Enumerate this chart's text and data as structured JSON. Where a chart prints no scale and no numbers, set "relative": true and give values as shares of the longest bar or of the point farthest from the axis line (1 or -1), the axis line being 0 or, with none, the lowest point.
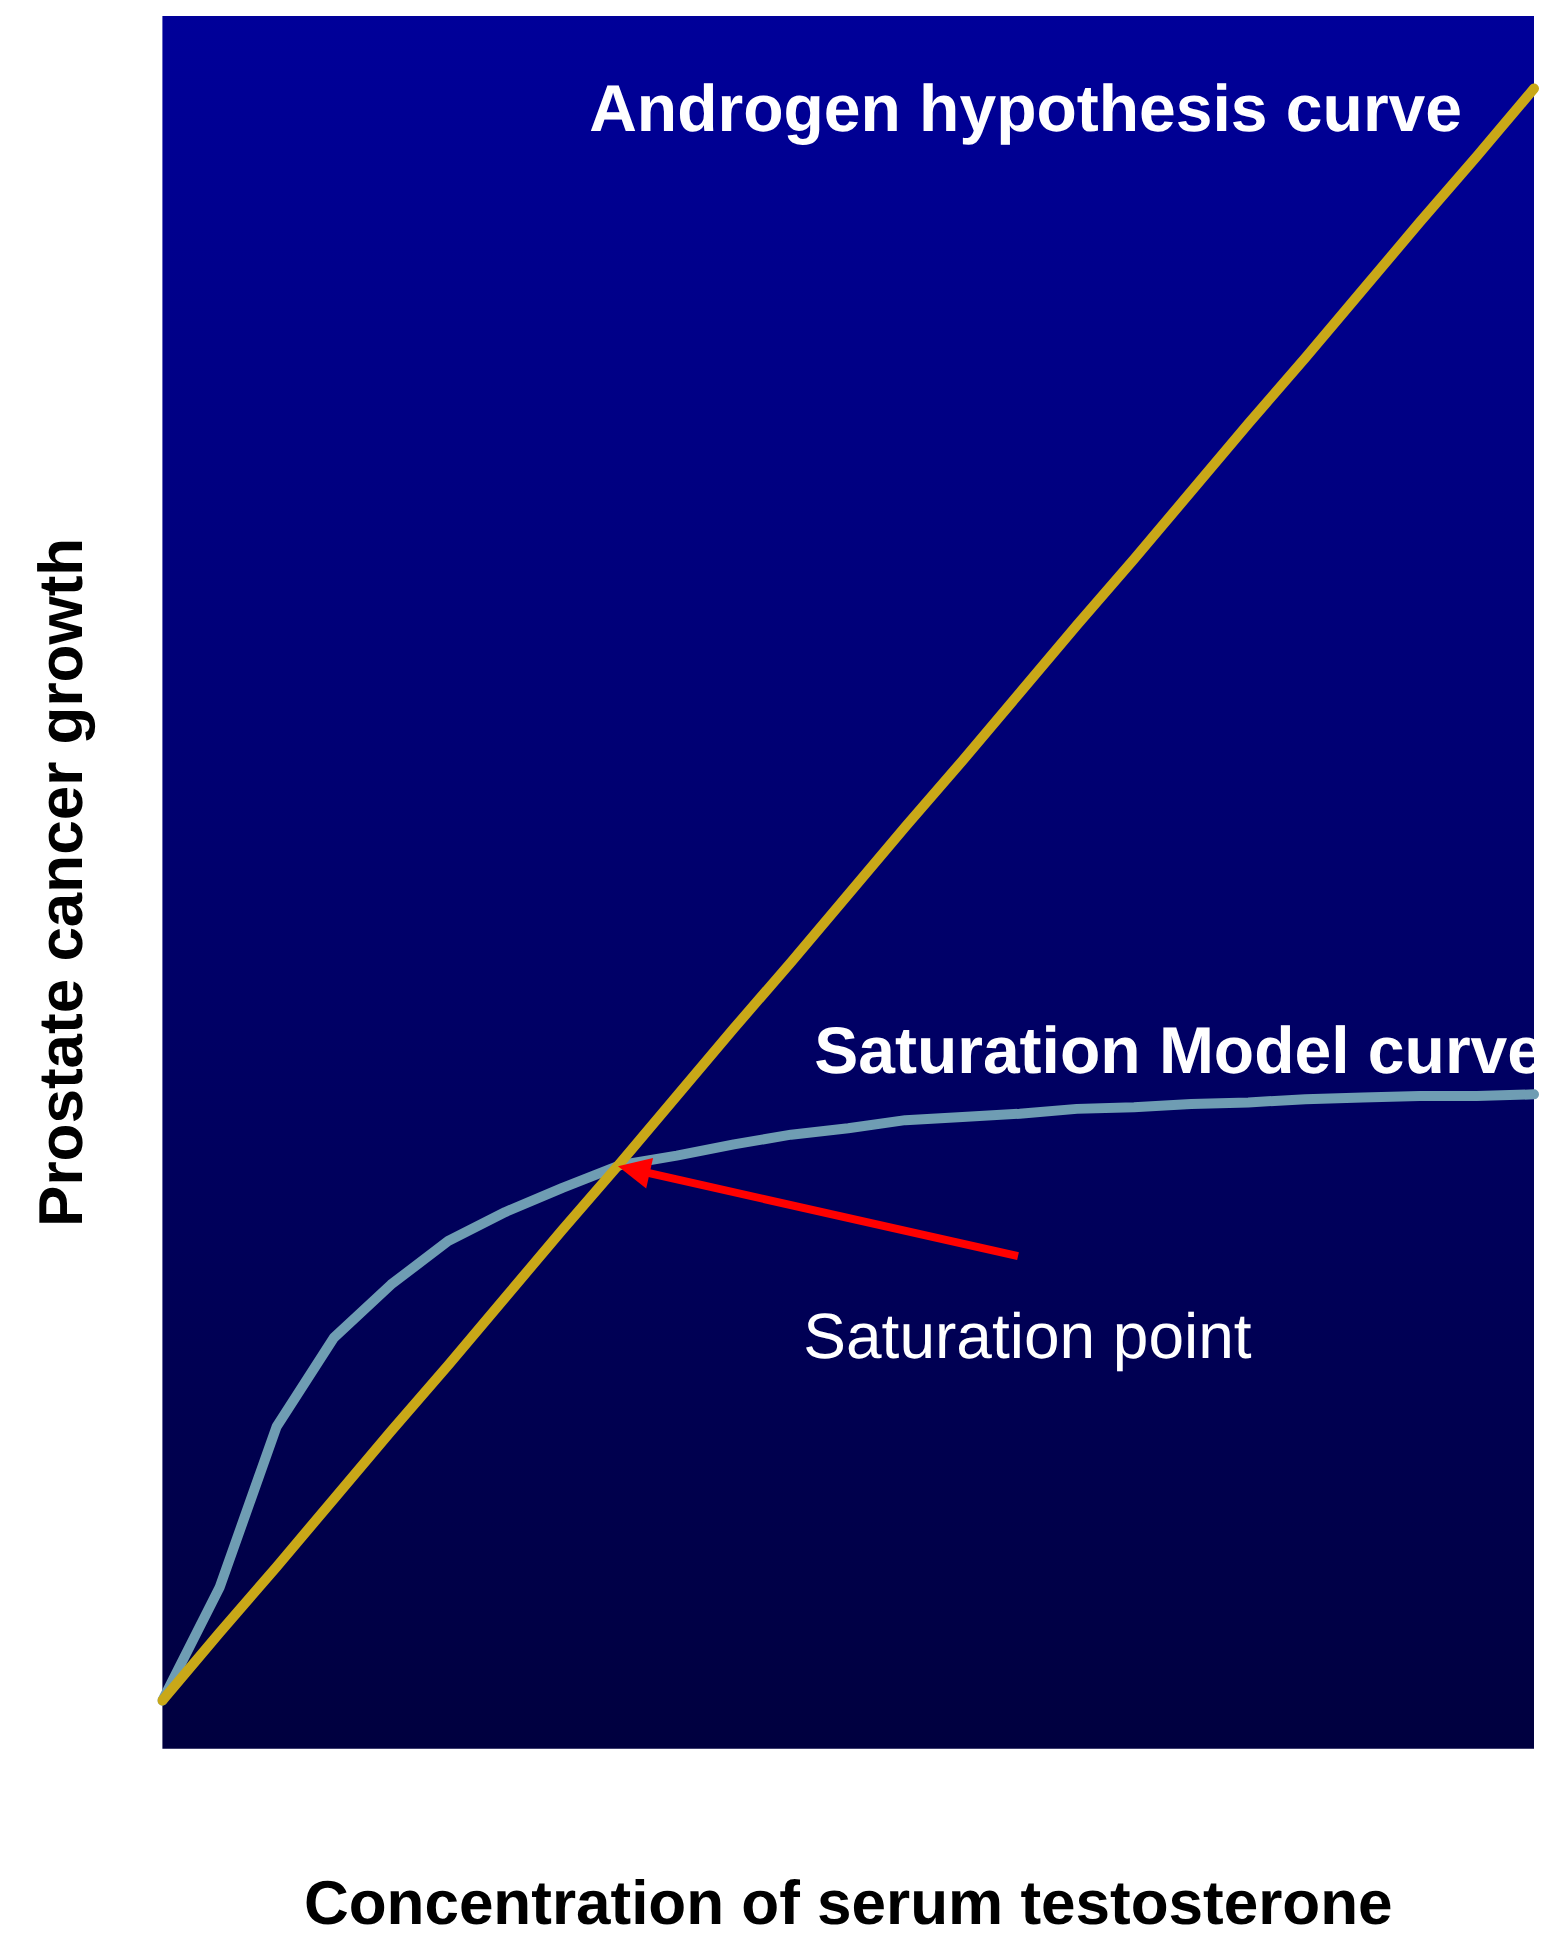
{
  "chart_data": {
    "type": "line",
    "relative": true,
    "xlabel": "Concentration of serum testosterone",
    "ylabel": "Prostate cancer growth",
    "legend": false,
    "grid": false,
    "marker": "none",
    "line_style": "solid",
    "categories": [
      null,
      null,
      null,
      null,
      null,
      null,
      null,
      null,
      null,
      null,
      null,
      null,
      null,
      null,
      null,
      null,
      null,
      null,
      null,
      null,
      null,
      null,
      null,
      null,
      null
    ],
    "series": [
      {
        "name": "Androgen hypothesis curve",
        "color": "#c9a818",
        "values": [
          0,
          0.042,
          0.083,
          0.125,
          0.167,
          0.208,
          0.25,
          0.292,
          0.333,
          0.375,
          0.417,
          0.458,
          0.5,
          0.542,
          0.583,
          0.625,
          0.667,
          0.708,
          0.75,
          0.792,
          0.833,
          0.875,
          0.917,
          0.958,
          1
        ]
      },
      {
        "name": "Saturation Model curve",
        "color": "#6f9db3",
        "values": [
          0,
          0.07,
          0.17,
          0.225,
          0.258,
          0.285,
          0.303,
          0.318,
          0.332,
          0.338,
          0.345,
          0.351,
          0.355,
          0.36,
          0.362,
          0.364,
          0.367,
          0.368,
          0.37,
          0.371,
          0.373,
          0.374,
          0.375,
          0.375,
          0.376
        ]
      }
    ],
    "annotations": [
      "Saturation point"
    ]
  }
}
